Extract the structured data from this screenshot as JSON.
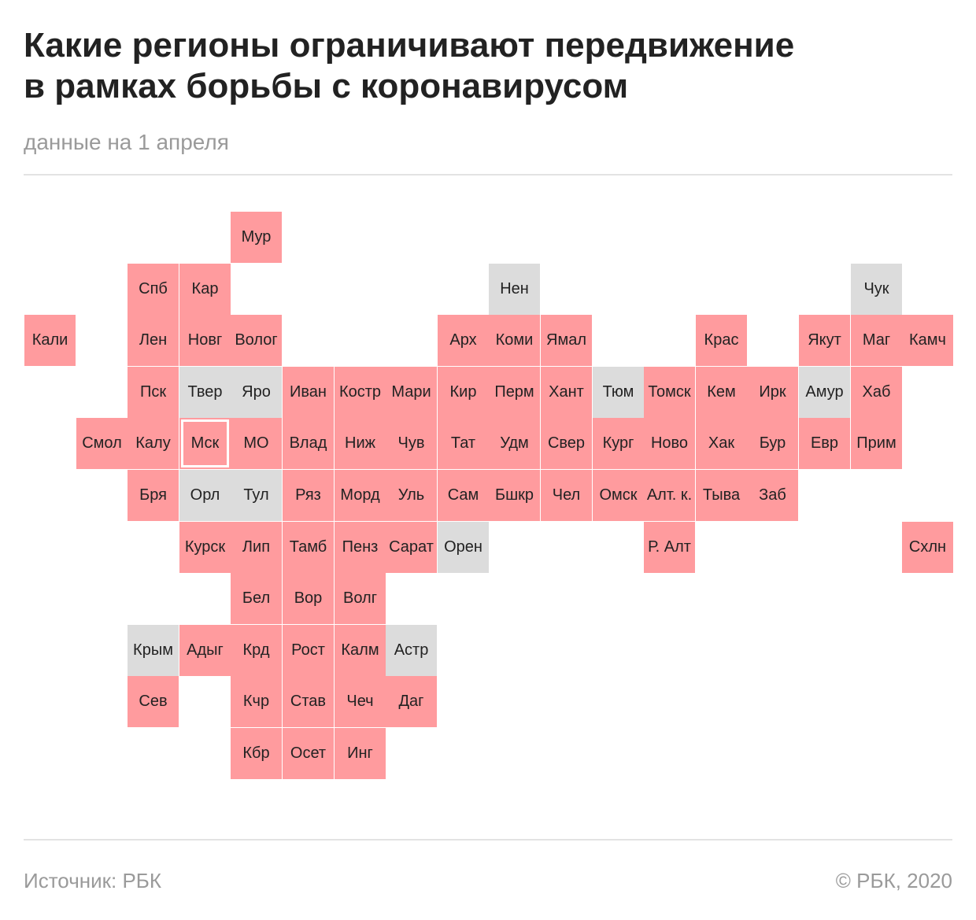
{
  "header": {
    "title_line1": "Какие регионы ограничивают передвижение",
    "title_line2": "в рамках борьбы с коронавирусом",
    "subtitle": "данные на 1 апреля"
  },
  "footer": {
    "source": "Источник: РБК",
    "copyright": "© РБК, 2020"
  },
  "colors": {
    "restricted": "#ff9b9e",
    "not_restricted": "#dcdcdc"
  },
  "map": {
    "grid_note_columns_rows": "col/row are tile-grid indices",
    "tiles": [
      {
        "label": "Мур",
        "col": 4,
        "row": 0,
        "restricted": true
      },
      {
        "label": "Спб",
        "col": 2,
        "row": 1,
        "restricted": true
      },
      {
        "label": "Кар",
        "col": 3,
        "row": 1,
        "restricted": true
      },
      {
        "label": "Нен",
        "col": 9,
        "row": 1,
        "restricted": false
      },
      {
        "label": "Чук",
        "col": 16,
        "row": 1,
        "restricted": false
      },
      {
        "label": "Кали",
        "col": 0,
        "row": 2,
        "restricted": true
      },
      {
        "label": "Лен",
        "col": 2,
        "row": 2,
        "restricted": true
      },
      {
        "label": "Новг",
        "col": 3,
        "row": 2,
        "restricted": true
      },
      {
        "label": "Волог",
        "col": 4,
        "row": 2,
        "restricted": true
      },
      {
        "label": "Арх",
        "col": 8,
        "row": 2,
        "restricted": true
      },
      {
        "label": "Коми",
        "col": 9,
        "row": 2,
        "restricted": true
      },
      {
        "label": "Ямал",
        "col": 10,
        "row": 2,
        "restricted": true
      },
      {
        "label": "Крас",
        "col": 13,
        "row": 2,
        "restricted": true
      },
      {
        "label": "Якут",
        "col": 15,
        "row": 2,
        "restricted": true
      },
      {
        "label": "Маг",
        "col": 16,
        "row": 2,
        "restricted": true
      },
      {
        "label": "Камч",
        "col": 17,
        "row": 2,
        "restricted": true
      },
      {
        "label": "Пск",
        "col": 2,
        "row": 3,
        "restricted": true
      },
      {
        "label": "Твер",
        "col": 3,
        "row": 3,
        "restricted": false
      },
      {
        "label": "Яро",
        "col": 4,
        "row": 3,
        "restricted": false
      },
      {
        "label": "Иван",
        "col": 5,
        "row": 3,
        "restricted": true
      },
      {
        "label": "Костр",
        "col": 6,
        "row": 3,
        "restricted": true
      },
      {
        "label": "Мари",
        "col": 7,
        "row": 3,
        "restricted": true
      },
      {
        "label": "Кир",
        "col": 8,
        "row": 3,
        "restricted": true
      },
      {
        "label": "Перм",
        "col": 9,
        "row": 3,
        "restricted": true
      },
      {
        "label": "Хант",
        "col": 10,
        "row": 3,
        "restricted": true
      },
      {
        "label": "Тюм",
        "col": 11,
        "row": 3,
        "restricted": false
      },
      {
        "label": "Томск",
        "col": 12,
        "row": 3,
        "restricted": true
      },
      {
        "label": "Кем",
        "col": 13,
        "row": 3,
        "restricted": true
      },
      {
        "label": "Ирк",
        "col": 14,
        "row": 3,
        "restricted": true
      },
      {
        "label": "Амур",
        "col": 15,
        "row": 3,
        "restricted": false
      },
      {
        "label": "Хаб",
        "col": 16,
        "row": 3,
        "restricted": true
      },
      {
        "label": "Смол",
        "col": 1,
        "row": 4,
        "restricted": true
      },
      {
        "label": "Калу",
        "col": 2,
        "row": 4,
        "restricted": true
      },
      {
        "label": "Мск",
        "col": 3,
        "row": 4,
        "restricted": true,
        "capital": true
      },
      {
        "label": "МО",
        "col": 4,
        "row": 4,
        "restricted": true
      },
      {
        "label": "Влад",
        "col": 5,
        "row": 4,
        "restricted": true
      },
      {
        "label": "Ниж",
        "col": 6,
        "row": 4,
        "restricted": true
      },
      {
        "label": "Чув",
        "col": 7,
        "row": 4,
        "restricted": true
      },
      {
        "label": "Тат",
        "col": 8,
        "row": 4,
        "restricted": true
      },
      {
        "label": "Удм",
        "col": 9,
        "row": 4,
        "restricted": true
      },
      {
        "label": "Свер",
        "col": 10,
        "row": 4,
        "restricted": true
      },
      {
        "label": "Кург",
        "col": 11,
        "row": 4,
        "restricted": true
      },
      {
        "label": "Ново",
        "col": 12,
        "row": 4,
        "restricted": true
      },
      {
        "label": "Хак",
        "col": 13,
        "row": 4,
        "restricted": true
      },
      {
        "label": "Бур",
        "col": 14,
        "row": 4,
        "restricted": true
      },
      {
        "label": "Евр",
        "col": 15,
        "row": 4,
        "restricted": true
      },
      {
        "label": "Прим",
        "col": 16,
        "row": 4,
        "restricted": true
      },
      {
        "label": "Бря",
        "col": 2,
        "row": 5,
        "restricted": true
      },
      {
        "label": "Орл",
        "col": 3,
        "row": 5,
        "restricted": false
      },
      {
        "label": "Тул",
        "col": 4,
        "row": 5,
        "restricted": false
      },
      {
        "label": "Ряз",
        "col": 5,
        "row": 5,
        "restricted": true
      },
      {
        "label": "Морд",
        "col": 6,
        "row": 5,
        "restricted": true
      },
      {
        "label": "Уль",
        "col": 7,
        "row": 5,
        "restricted": true
      },
      {
        "label": "Сам",
        "col": 8,
        "row": 5,
        "restricted": true
      },
      {
        "label": "Бшкр",
        "col": 9,
        "row": 5,
        "restricted": true
      },
      {
        "label": "Чел",
        "col": 10,
        "row": 5,
        "restricted": true
      },
      {
        "label": "Омск",
        "col": 11,
        "row": 5,
        "restricted": true
      },
      {
        "label": "Алт. к.",
        "col": 12,
        "row": 5,
        "restricted": true
      },
      {
        "label": "Тыва",
        "col": 13,
        "row": 5,
        "restricted": true
      },
      {
        "label": "Заб",
        "col": 14,
        "row": 5,
        "restricted": true
      },
      {
        "label": "Курск",
        "col": 3,
        "row": 6,
        "restricted": true
      },
      {
        "label": "Лип",
        "col": 4,
        "row": 6,
        "restricted": true
      },
      {
        "label": "Тамб",
        "col": 5,
        "row": 6,
        "restricted": true
      },
      {
        "label": "Пенз",
        "col": 6,
        "row": 6,
        "restricted": true
      },
      {
        "label": "Сарат",
        "col": 7,
        "row": 6,
        "restricted": true
      },
      {
        "label": "Орен",
        "col": 8,
        "row": 6,
        "restricted": false
      },
      {
        "label": "Р. Алт",
        "col": 12,
        "row": 6,
        "restricted": true
      },
      {
        "label": "Схлн",
        "col": 17,
        "row": 6,
        "restricted": true
      },
      {
        "label": "Бел",
        "col": 4,
        "row": 7,
        "restricted": true
      },
      {
        "label": "Вор",
        "col": 5,
        "row": 7,
        "restricted": true
      },
      {
        "label": "Волг",
        "col": 6,
        "row": 7,
        "restricted": true
      },
      {
        "label": "Крым",
        "col": 2,
        "row": 8,
        "restricted": false
      },
      {
        "label": "Адыг",
        "col": 3,
        "row": 8,
        "restricted": true
      },
      {
        "label": "Крд",
        "col": 4,
        "row": 8,
        "restricted": true
      },
      {
        "label": "Рост",
        "col": 5,
        "row": 8,
        "restricted": true
      },
      {
        "label": "Калм",
        "col": 6,
        "row": 8,
        "restricted": true
      },
      {
        "label": "Астр",
        "col": 7,
        "row": 8,
        "restricted": false
      },
      {
        "label": "Сев",
        "col": 2,
        "row": 9,
        "restricted": true
      },
      {
        "label": "Кчр",
        "col": 4,
        "row": 9,
        "restricted": true
      },
      {
        "label": "Став",
        "col": 5,
        "row": 9,
        "restricted": true
      },
      {
        "label": "Чеч",
        "col": 6,
        "row": 9,
        "restricted": true
      },
      {
        "label": "Даг",
        "col": 7,
        "row": 9,
        "restricted": true
      },
      {
        "label": "Кбр",
        "col": 4,
        "row": 10,
        "restricted": true
      },
      {
        "label": "Осет",
        "col": 5,
        "row": 10,
        "restricted": true
      },
      {
        "label": "Инг",
        "col": 6,
        "row": 10,
        "restricted": true
      }
    ]
  }
}
